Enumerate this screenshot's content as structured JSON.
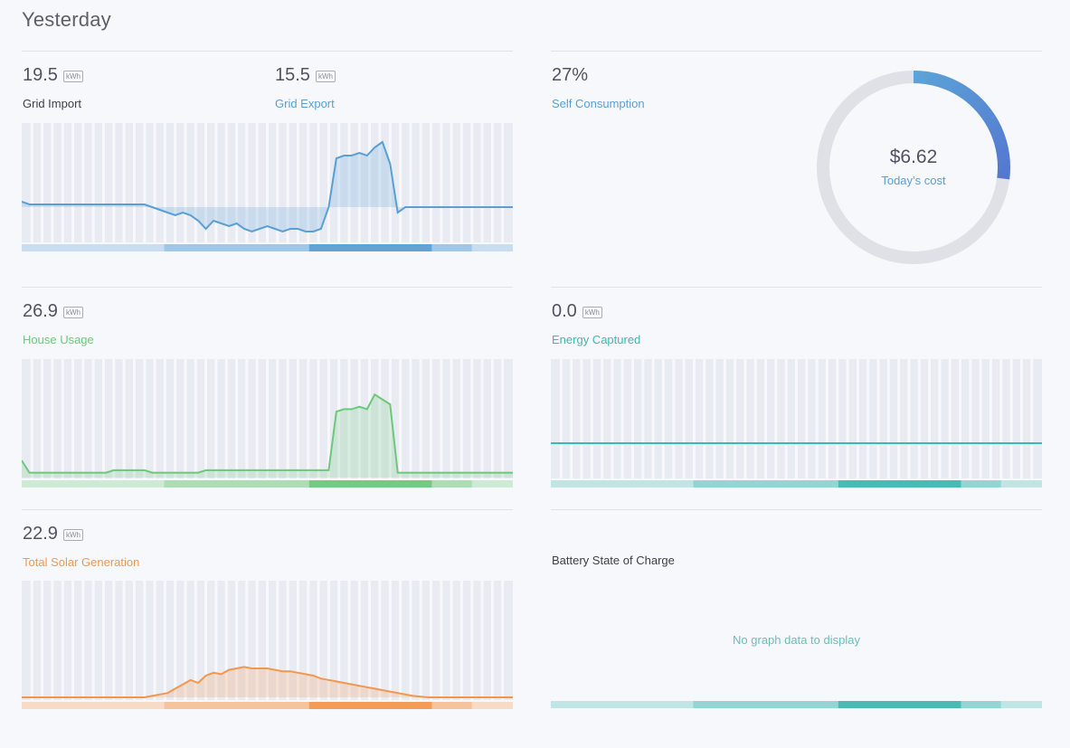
{
  "page": {
    "title": "Yesterday"
  },
  "colors": {
    "grid": "#5a9fd4",
    "house": "#6cc87a",
    "solar": "#f3974f",
    "captured": "#3fb8b3",
    "ring_bg": "#dfe1e6",
    "ring_fg_start": "#5ca3d8",
    "ring_fg_end": "#5478d0"
  },
  "unit": "kWh",
  "grid_import": {
    "value": "19.5",
    "label": "Grid Import"
  },
  "grid_export": {
    "value": "15.5",
    "label": "Grid Export"
  },
  "self_consumption": {
    "value": "27%",
    "label": "Self Consumption",
    "fraction": 0.27
  },
  "cost": {
    "value": "$6.62",
    "label": "Today’s cost"
  },
  "house_usage": {
    "value": "26.9",
    "label": "House Usage"
  },
  "energy_captured": {
    "value": "0.0",
    "label": "Energy Captured"
  },
  "solar": {
    "value": "22.9",
    "label": "Total Solar Generation"
  },
  "battery": {
    "label": "Battery State of Charge",
    "empty_message": "No graph data to display"
  },
  "chart_data": [
    {
      "id": "grid",
      "type": "area",
      "series": [
        {
          "name": "Grid Import",
          "values": [
            0.2,
            0.1,
            0.1,
            0.1,
            0.1,
            0.1,
            0.1,
            0.1,
            0.1,
            0.1,
            0.1,
            0.1,
            0.1,
            0.1,
            0.1,
            0.1,
            0.1,
            0.0,
            -0.1,
            -0.2,
            -0.3,
            -0.2,
            -0.3,
            -0.5,
            -0.8,
            -0.5,
            -0.6,
            -0.7,
            -0.6,
            -0.8,
            -0.9,
            -0.8,
            -0.7,
            -0.8,
            -0.9,
            -0.8,
            -0.8,
            -0.9,
            -0.9,
            -0.8,
            0.0,
            1.8,
            1.9,
            1.9,
            2.0,
            1.9,
            2.2,
            2.4,
            1.6,
            -0.2,
            0.0,
            0.0,
            0.0,
            0.0,
            0.0,
            0.0,
            0.0,
            0.0,
            0.0,
            0.0,
            0.0,
            0.0,
            0.0,
            0.0,
            0.0
          ]
        }
      ]
    },
    {
      "id": "house",
      "type": "area",
      "series": [
        {
          "name": "House Usage",
          "values": [
            0.7,
            0.2,
            0.2,
            0.2,
            0.2,
            0.2,
            0.2,
            0.2,
            0.2,
            0.2,
            0.2,
            0.2,
            0.3,
            0.3,
            0.3,
            0.3,
            0.3,
            0.2,
            0.2,
            0.2,
            0.2,
            0.2,
            0.2,
            0.2,
            0.3,
            0.3,
            0.3,
            0.3,
            0.3,
            0.3,
            0.3,
            0.3,
            0.3,
            0.3,
            0.3,
            0.3,
            0.3,
            0.3,
            0.3,
            0.3,
            0.3,
            2.7,
            2.8,
            2.8,
            2.9,
            2.8,
            3.4,
            3.2,
            3.0,
            0.2,
            0.2,
            0.2,
            0.2,
            0.2,
            0.2,
            0.2,
            0.2,
            0.2,
            0.2,
            0.2,
            0.2,
            0.2,
            0.2,
            0.2,
            0.2
          ]
        }
      ]
    },
    {
      "id": "captured",
      "type": "line",
      "series": [
        {
          "name": "Energy Captured",
          "values": [
            0,
            0,
            0,
            0,
            0,
            0,
            0,
            0,
            0,
            0,
            0,
            0,
            0,
            0,
            0,
            0,
            0,
            0,
            0,
            0,
            0,
            0,
            0,
            0,
            0,
            0,
            0,
            0,
            0,
            0,
            0,
            0,
            0,
            0,
            0,
            0,
            0,
            0,
            0,
            0,
            0,
            0,
            0,
            0,
            0,
            0,
            0,
            0,
            0,
            0,
            0,
            0,
            0,
            0,
            0,
            0,
            0,
            0,
            0,
            0,
            0,
            0,
            0,
            0,
            0
          ]
        }
      ]
    },
    {
      "id": "solar",
      "type": "area",
      "series": [
        {
          "name": "Total Solar Generation",
          "values": [
            0,
            0,
            0,
            0,
            0,
            0,
            0,
            0,
            0,
            0,
            0,
            0,
            0,
            0,
            0,
            0,
            0,
            0.1,
            0.2,
            0.3,
            0.6,
            0.9,
            1.2,
            1.0,
            1.5,
            1.7,
            1.6,
            1.9,
            2.0,
            2.1,
            2.0,
            2.0,
            2.0,
            1.9,
            1.8,
            1.8,
            1.7,
            1.6,
            1.5,
            1.3,
            1.2,
            1.1,
            1.0,
            0.9,
            0.8,
            0.7,
            0.6,
            0.5,
            0.4,
            0.3,
            0.2,
            0.1,
            0.05,
            0,
            0,
            0,
            0,
            0,
            0,
            0,
            0,
            0,
            0,
            0,
            0
          ]
        }
      ]
    }
  ]
}
